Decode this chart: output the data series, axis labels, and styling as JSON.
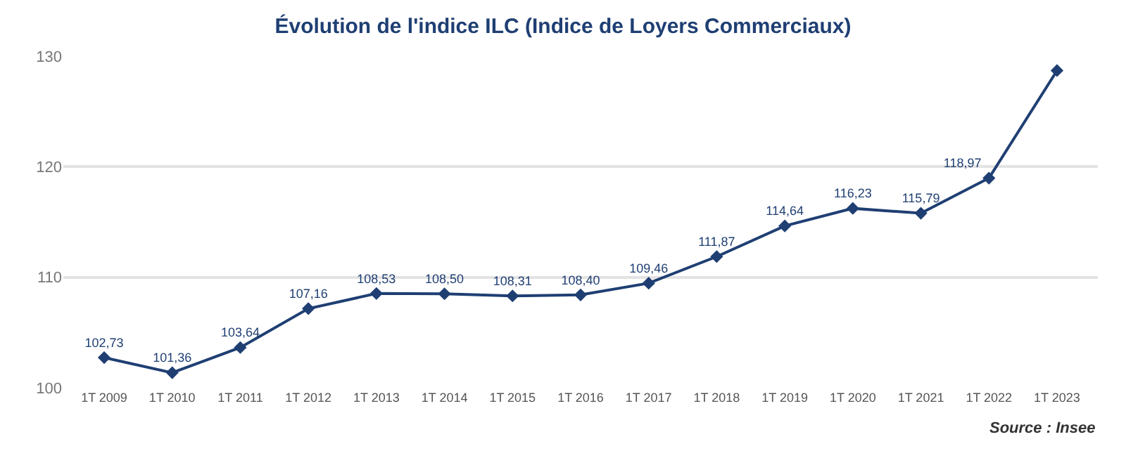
{
  "chart_data": {
    "type": "line",
    "title": "Évolution de l'indice ILC (Indice de Loyers Commerciaux)",
    "categories": [
      "1T 2009",
      "1T 2010",
      "1T 2011",
      "1T 2012",
      "1T 2013",
      "1T 2014",
      "1T 2015",
      "1T 2016",
      "1T 2017",
      "1T 2018",
      "1T 2019",
      "1T 2020",
      "1T 2021",
      "1T 2022",
      "1T 2023"
    ],
    "series": [
      {
        "color": "#1f3f73",
        "values": [
          102.73,
          101.36,
          103.64,
          107.16,
          108.53,
          108.5,
          108.31,
          108.4,
          109.46,
          111.87,
          114.64,
          116.23,
          115.79,
          118.97,
          128.7
        ],
        "value_labels": [
          "102,73",
          "101,36",
          "103,64",
          "107,16",
          "108,53",
          "108,50",
          "108,31",
          "108,40",
          "109,46",
          "111,87",
          "114,64",
          "116,23",
          "115,79",
          "118,97",
          null
        ]
      }
    ],
    "ylim": [
      100,
      130
    ],
    "yticks": [
      100,
      110,
      120,
      130
    ],
    "grid": "y",
    "marker": "diamond",
    "line_style": "solid",
    "legend": false,
    "annotations": [
      "Source : Insee"
    ]
  }
}
